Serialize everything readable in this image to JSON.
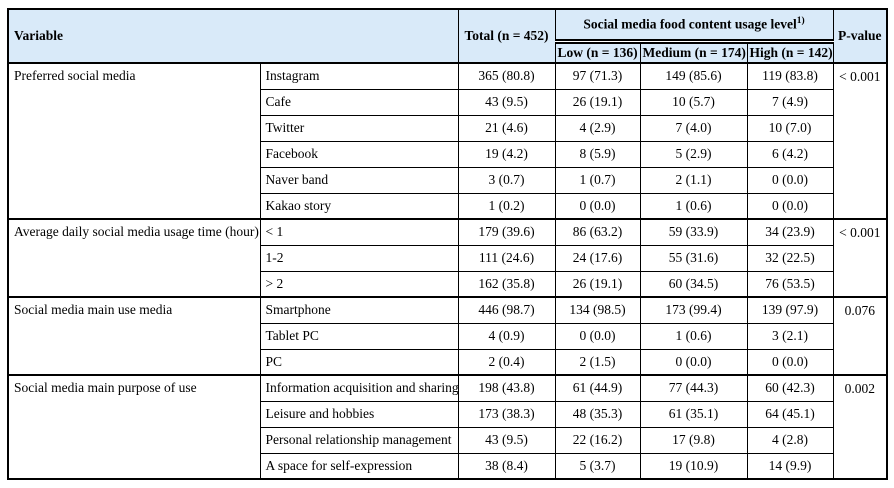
{
  "colors": {
    "header_background": "#d9eaf9",
    "border": "#000000",
    "text": "#000000",
    "page_background": "#ffffff"
  },
  "table": {
    "header": {
      "variable": "Variable",
      "total": "Total (n = 452)",
      "usage_level_spanner": "Social media food content usage level",
      "usage_level_footnote_marker": "1)",
      "sub_columns": [
        "Low (n = 136)",
        "Medium (n = 174)",
        "High (n = 142)"
      ],
      "p_value": "P-value"
    },
    "groups": [
      {
        "variable": "Preferred social media",
        "p_value": "< 0.001",
        "rows": [
          {
            "label": "Instagram",
            "values": [
              "365 (80.8)",
              "97 (71.3)",
              "149 (85.6)",
              "119 (83.8)"
            ]
          },
          {
            "label": "Cafe",
            "values": [
              "43 (9.5)",
              "26 (19.1)",
              "10 (5.7)",
              "7 (4.9)"
            ]
          },
          {
            "label": "Twitter",
            "values": [
              "21 (4.6)",
              "4 (2.9)",
              "7 (4.0)",
              "10 (7.0)"
            ]
          },
          {
            "label": "Facebook",
            "values": [
              "19 (4.2)",
              "8 (5.9)",
              "5 (2.9)",
              "6 (4.2)"
            ]
          },
          {
            "label": "Naver band",
            "values": [
              "3 (0.7)",
              "1 (0.7)",
              "2 (1.1)",
              "0 (0.0)"
            ]
          },
          {
            "label": "Kakao story",
            "values": [
              "1 (0.2)",
              "0 (0.0)",
              "1 (0.6)",
              "0 (0.0)"
            ]
          }
        ]
      },
      {
        "variable": "Average daily social media usage time (hour)",
        "p_value": "< 0.001",
        "rows": [
          {
            "label": "< 1",
            "values": [
              "179 (39.6)",
              "86 (63.2)",
              "59 (33.9)",
              "34 (23.9)"
            ]
          },
          {
            "label": "1-2",
            "values": [
              "111 (24.6)",
              "24 (17.6)",
              "55 (31.6)",
              "32 (22.5)"
            ]
          },
          {
            "label": "> 2",
            "values": [
              "162 (35.8)",
              "26 (19.1)",
              "60 (34.5)",
              "76 (53.5)"
            ]
          }
        ]
      },
      {
        "variable": "Social media main use media",
        "p_value": "0.076",
        "rows": [
          {
            "label": "Smartphone",
            "values": [
              "446 (98.7)",
              "134 (98.5)",
              "173 (99.4)",
              "139 (97.9)"
            ]
          },
          {
            "label": "Tablet PC",
            "values": [
              "4 (0.9)",
              "0 (0.0)",
              "1 (0.6)",
              "3 (2.1)"
            ]
          },
          {
            "label": "PC",
            "values": [
              "2 (0.4)",
              "2 (1.5)",
              "0 (0.0)",
              "0 (0.0)"
            ]
          }
        ]
      },
      {
        "variable": "Social media main purpose of use",
        "p_value": "0.002",
        "rows": [
          {
            "label": "Information acquisition and sharing",
            "values": [
              "198 (43.8)",
              "61 (44.9)",
              "77 (44.3)",
              "60 (42.3)"
            ]
          },
          {
            "label": "Leisure and hobbies",
            "values": [
              "173 (38.3)",
              "48 (35.3)",
              "61 (35.1)",
              "64 (45.1)"
            ]
          },
          {
            "label": "Personal relationship management",
            "values": [
              "43 (9.5)",
              "22 (16.2)",
              "17 (9.8)",
              "4 (2.8)"
            ]
          },
          {
            "label": "A space for self-expression",
            "values": [
              "38 (8.4)",
              "5 (3.7)",
              "19 (10.9)",
              "14 (9.9)"
            ]
          }
        ]
      }
    ]
  }
}
